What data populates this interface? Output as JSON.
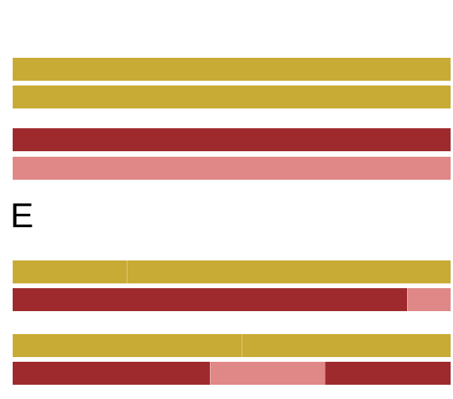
{
  "panel_label": "E",
  "colors": {
    "gold": "#C8AB35",
    "dark_red": "#9E2A2E",
    "pink": "#E08787"
  },
  "rows": [
    {
      "segments": [
        {
          "color": "gold",
          "fraction": 1.0
        }
      ]
    },
    {
      "segments": [
        {
          "color": "gold",
          "fraction": 1.0
        }
      ]
    },
    {
      "segments": [
        {
          "color": "dark_red",
          "fraction": 1.0
        }
      ]
    },
    {
      "segments": [
        {
          "color": "pink",
          "fraction": 1.0
        }
      ]
    },
    {
      "segments": [
        {
          "color": "gold",
          "fraction": 0.26
        },
        {
          "color": "gold",
          "fraction": 0.74
        }
      ]
    },
    {
      "segments": [
        {
          "color": "dark_red",
          "fraction": 0.9
        },
        {
          "color": "pink",
          "fraction": 0.1
        }
      ]
    },
    {
      "segments": [
        {
          "color": "gold",
          "fraction": 0.523
        },
        {
          "color": "gold",
          "fraction": 0.477
        }
      ]
    },
    {
      "segments": [
        {
          "color": "dark_red",
          "fraction": 0.45
        },
        {
          "color": "pink",
          "fraction": 0.263
        },
        {
          "color": "dark_red",
          "fraction": 0.287
        }
      ]
    }
  ]
}
